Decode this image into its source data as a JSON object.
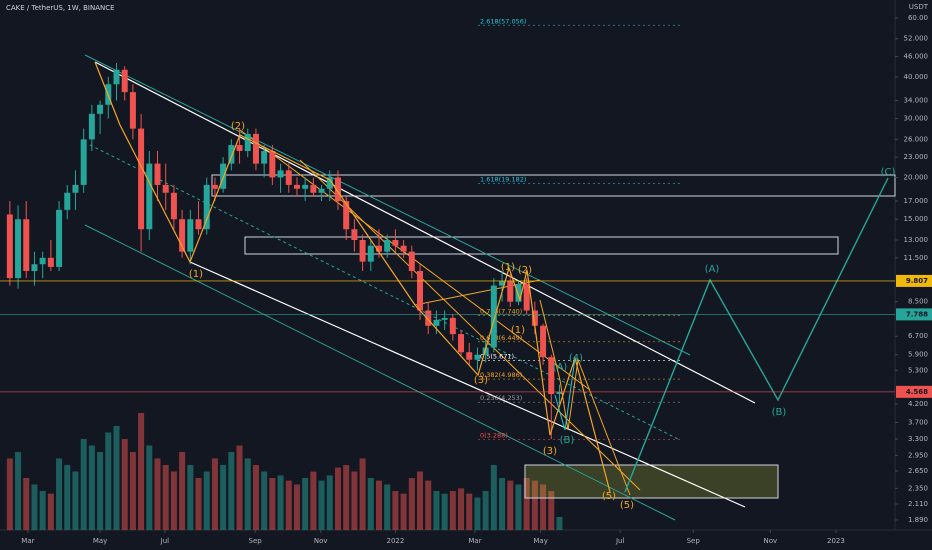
{
  "chart_data": {
    "type": "candlestick",
    "title": "CAKE / TetherUS, 1W, BINANCE",
    "y_unit": "USDT",
    "log_scale": true,
    "grid": false,
    "up_color": "#26a69a",
    "down_color": "#ef5350",
    "xlim": [
      -1.2,
      107.9
    ],
    "xticks": [
      {
        "value": 2.2,
        "label": "Mar"
      },
      {
        "value": 11,
        "label": "May"
      },
      {
        "value": 18.9,
        "label": "Jul"
      },
      {
        "value": 29.9,
        "label": "Sep"
      },
      {
        "value": 37.9,
        "label": "Nov"
      },
      {
        "value": 47,
        "label": "2022"
      },
      {
        "value": 56.7,
        "label": "Mar"
      },
      {
        "value": 64.7,
        "label": "May"
      },
      {
        "value": 74.4,
        "label": "Jul"
      },
      {
        "value": 83.3,
        "label": "Sep"
      },
      {
        "value": 92.7,
        "label": "Nov"
      },
      {
        "value": 100.7,
        "label": "2023"
      }
    ],
    "ylim": [
      1.764,
      67.9
    ],
    "yticks": [
      {
        "value": 60,
        "label": "60.00"
      },
      {
        "value": 52,
        "label": "52.000"
      },
      {
        "value": 46,
        "label": "46.000"
      },
      {
        "value": 40,
        "label": "40.000"
      },
      {
        "value": 34,
        "label": "34.000"
      },
      {
        "value": 30,
        "label": "30.000"
      },
      {
        "value": 26,
        "label": "26.000"
      },
      {
        "value": 23,
        "label": "23.000"
      },
      {
        "value": 20,
        "label": "20.000"
      },
      {
        "value": 17,
        "label": "17.000"
      },
      {
        "value": 15,
        "label": "15.000"
      },
      {
        "value": 13,
        "label": "13.000"
      },
      {
        "value": 11.5,
        "label": "11.500"
      },
      {
        "value": 8.5,
        "label": "8.500"
      },
      {
        "value": 6.7,
        "label": "6.700"
      },
      {
        "value": 5.9,
        "label": "5.900"
      },
      {
        "value": 5.3,
        "label": "5.300"
      },
      {
        "value": 4.2,
        "label": "4.200"
      },
      {
        "value": 3.7,
        "label": "3.700"
      },
      {
        "value": 3.3,
        "label": "3.300"
      },
      {
        "value": 2.95,
        "label": "2.950"
      },
      {
        "value": 2.65,
        "label": "2.650"
      },
      {
        "value": 2.35,
        "label": "2.350"
      },
      {
        "value": 2.11,
        "label": "2.110"
      },
      {
        "value": 1.89,
        "label": "1.890"
      }
    ],
    "open": [
      15.5,
      10,
      15,
      10.5,
      11,
      11.5,
      10.8,
      16,
      18,
      19,
      26,
      31,
      33,
      38,
      42,
      36,
      28,
      14,
      22,
      19,
      18,
      15,
      12,
      15,
      14,
      19,
      18.5,
      22,
      25,
      24,
      27,
      22,
      24,
      20,
      21,
      19,
      18.5,
      19,
      18,
      18.5,
      20,
      17,
      14,
      13,
      11.2,
      12.5,
      12,
      13,
      12.5,
      12,
      10.5,
      8,
      7.2,
      7.5,
      7.6,
      6.8,
      6,
      5.7,
      5.9,
      6.2,
      9.5,
      9.8,
      8.5,
      9.6,
      8,
      7.2,
      5.8,
      4.5
    ],
    "high": [
      17,
      16.5,
      17,
      12,
      12,
      13,
      17,
      19,
      21,
      28,
      33,
      34,
      40,
      44,
      43,
      38,
      31,
      24,
      24,
      22,
      19,
      16,
      16,
      17,
      20,
      20,
      23,
      26,
      28,
      28,
      28,
      25,
      25,
      22,
      22,
      20,
      20,
      20,
      19,
      21,
      21,
      17.5,
      15,
      13.5,
      13,
      14,
      13.5,
      14,
      13,
      12.5,
      11,
      8.5,
      8,
      8,
      7.8,
      7,
      6.4,
      6.2,
      6.5,
      10,
      10.5,
      10.3,
      9.8,
      10,
      8.5,
      7.3,
      5.9,
      4.8
    ],
    "low": [
      9.5,
      9.3,
      10,
      9.5,
      10,
      10.5,
      10.5,
      15,
      16,
      18,
      24,
      27,
      30,
      34,
      34,
      26,
      12,
      13,
      17,
      16,
      14,
      11.5,
      11,
      13.5,
      13.5,
      17,
      18,
      21,
      22,
      23,
      21,
      20,
      19,
      18,
      18,
      17.5,
      17,
      17.5,
      17,
      17,
      16,
      13,
      12,
      10.5,
      10.5,
      11.5,
      11.5,
      12,
      11.5,
      10,
      7.5,
      6.8,
      6.8,
      7,
      6.5,
      5.8,
      5.5,
      5.3,
      5.6,
      6,
      8.5,
      8.2,
      8.3,
      7.8,
      6.8,
      5.5,
      3.3,
      4.2
    ],
    "close": [
      10,
      15,
      10.5,
      11,
      11.5,
      10.8,
      16,
      18,
      19,
      26,
      31,
      33,
      38,
      42,
      36,
      28,
      14,
      22,
      19,
      18,
      15,
      12,
      15,
      14,
      19,
      18.5,
      22,
      25,
      24,
      27,
      22,
      24,
      20,
      21,
      19,
      18.5,
      19,
      18,
      18.5,
      20,
      17,
      14,
      13,
      11.2,
      12.5,
      12,
      13,
      12.5,
      12,
      10.5,
      8,
      7.2,
      7.5,
      7.6,
      6.8,
      6,
      5.7,
      5.9,
      6.2,
      9.5,
      9.8,
      8.5,
      9.6,
      8,
      7.2,
      5.8,
      4.5,
      4.568
    ],
    "volume": [
      55,
      60,
      40,
      35,
      30,
      28,
      55,
      50,
      45,
      70,
      65,
      60,
      75,
      80,
      70,
      60,
      90,
      65,
      55,
      50,
      45,
      60,
      50,
      40,
      45,
      55,
      50,
      60,
      65,
      55,
      50,
      45,
      40,
      42,
      38,
      35,
      40,
      45,
      38,
      42,
      48,
      50,
      45,
      55,
      40,
      38,
      35,
      30,
      28,
      40,
      45,
      38,
      30,
      28,
      30,
      32,
      28,
      25,
      30,
      50,
      40,
      38,
      35,
      40,
      38,
      35,
      30,
      10
    ],
    "price_lines": [
      {
        "value": 9.807,
        "color": "#f0b90b"
      },
      {
        "value": 7.788,
        "color": "#26a69a"
      },
      {
        "value": 4.568,
        "color": "#ef5350"
      }
    ],
    "fib_levels": [
      {
        "label": "2.618(57.056)",
        "value": 57.056,
        "color": "#26c6da"
      },
      {
        "label": "1.618(19.182)",
        "value": 19.182,
        "color": "#26c6da"
      },
      {
        "label": "0.786(7.740)",
        "value": 7.74,
        "color": "#f5a623"
      },
      {
        "label": "0.618(6.449)",
        "value": 6.449,
        "color": "#f5a623"
      },
      {
        "label": "0.5(5.671)",
        "value": 5.671,
        "color": "#ffffff"
      },
      {
        "label": "0.382(4.986)",
        "value": 4.986,
        "color": "#f5a623"
      },
      {
        "label": "0.236(4.253)",
        "value": 4.253,
        "color": "#9e9e9e"
      },
      {
        "label": "0(3.288)",
        "value": 3.288,
        "color": "#ef5350"
      }
    ],
    "annotations": [
      "(1)",
      "(2)",
      "(1)",
      "(2)",
      "(1)",
      "(3)",
      "(3)",
      "(4)",
      "(5)",
      "(5)",
      "(A)",
      "(B)",
      "(C)",
      "(B)",
      "(A)"
    ]
  }
}
